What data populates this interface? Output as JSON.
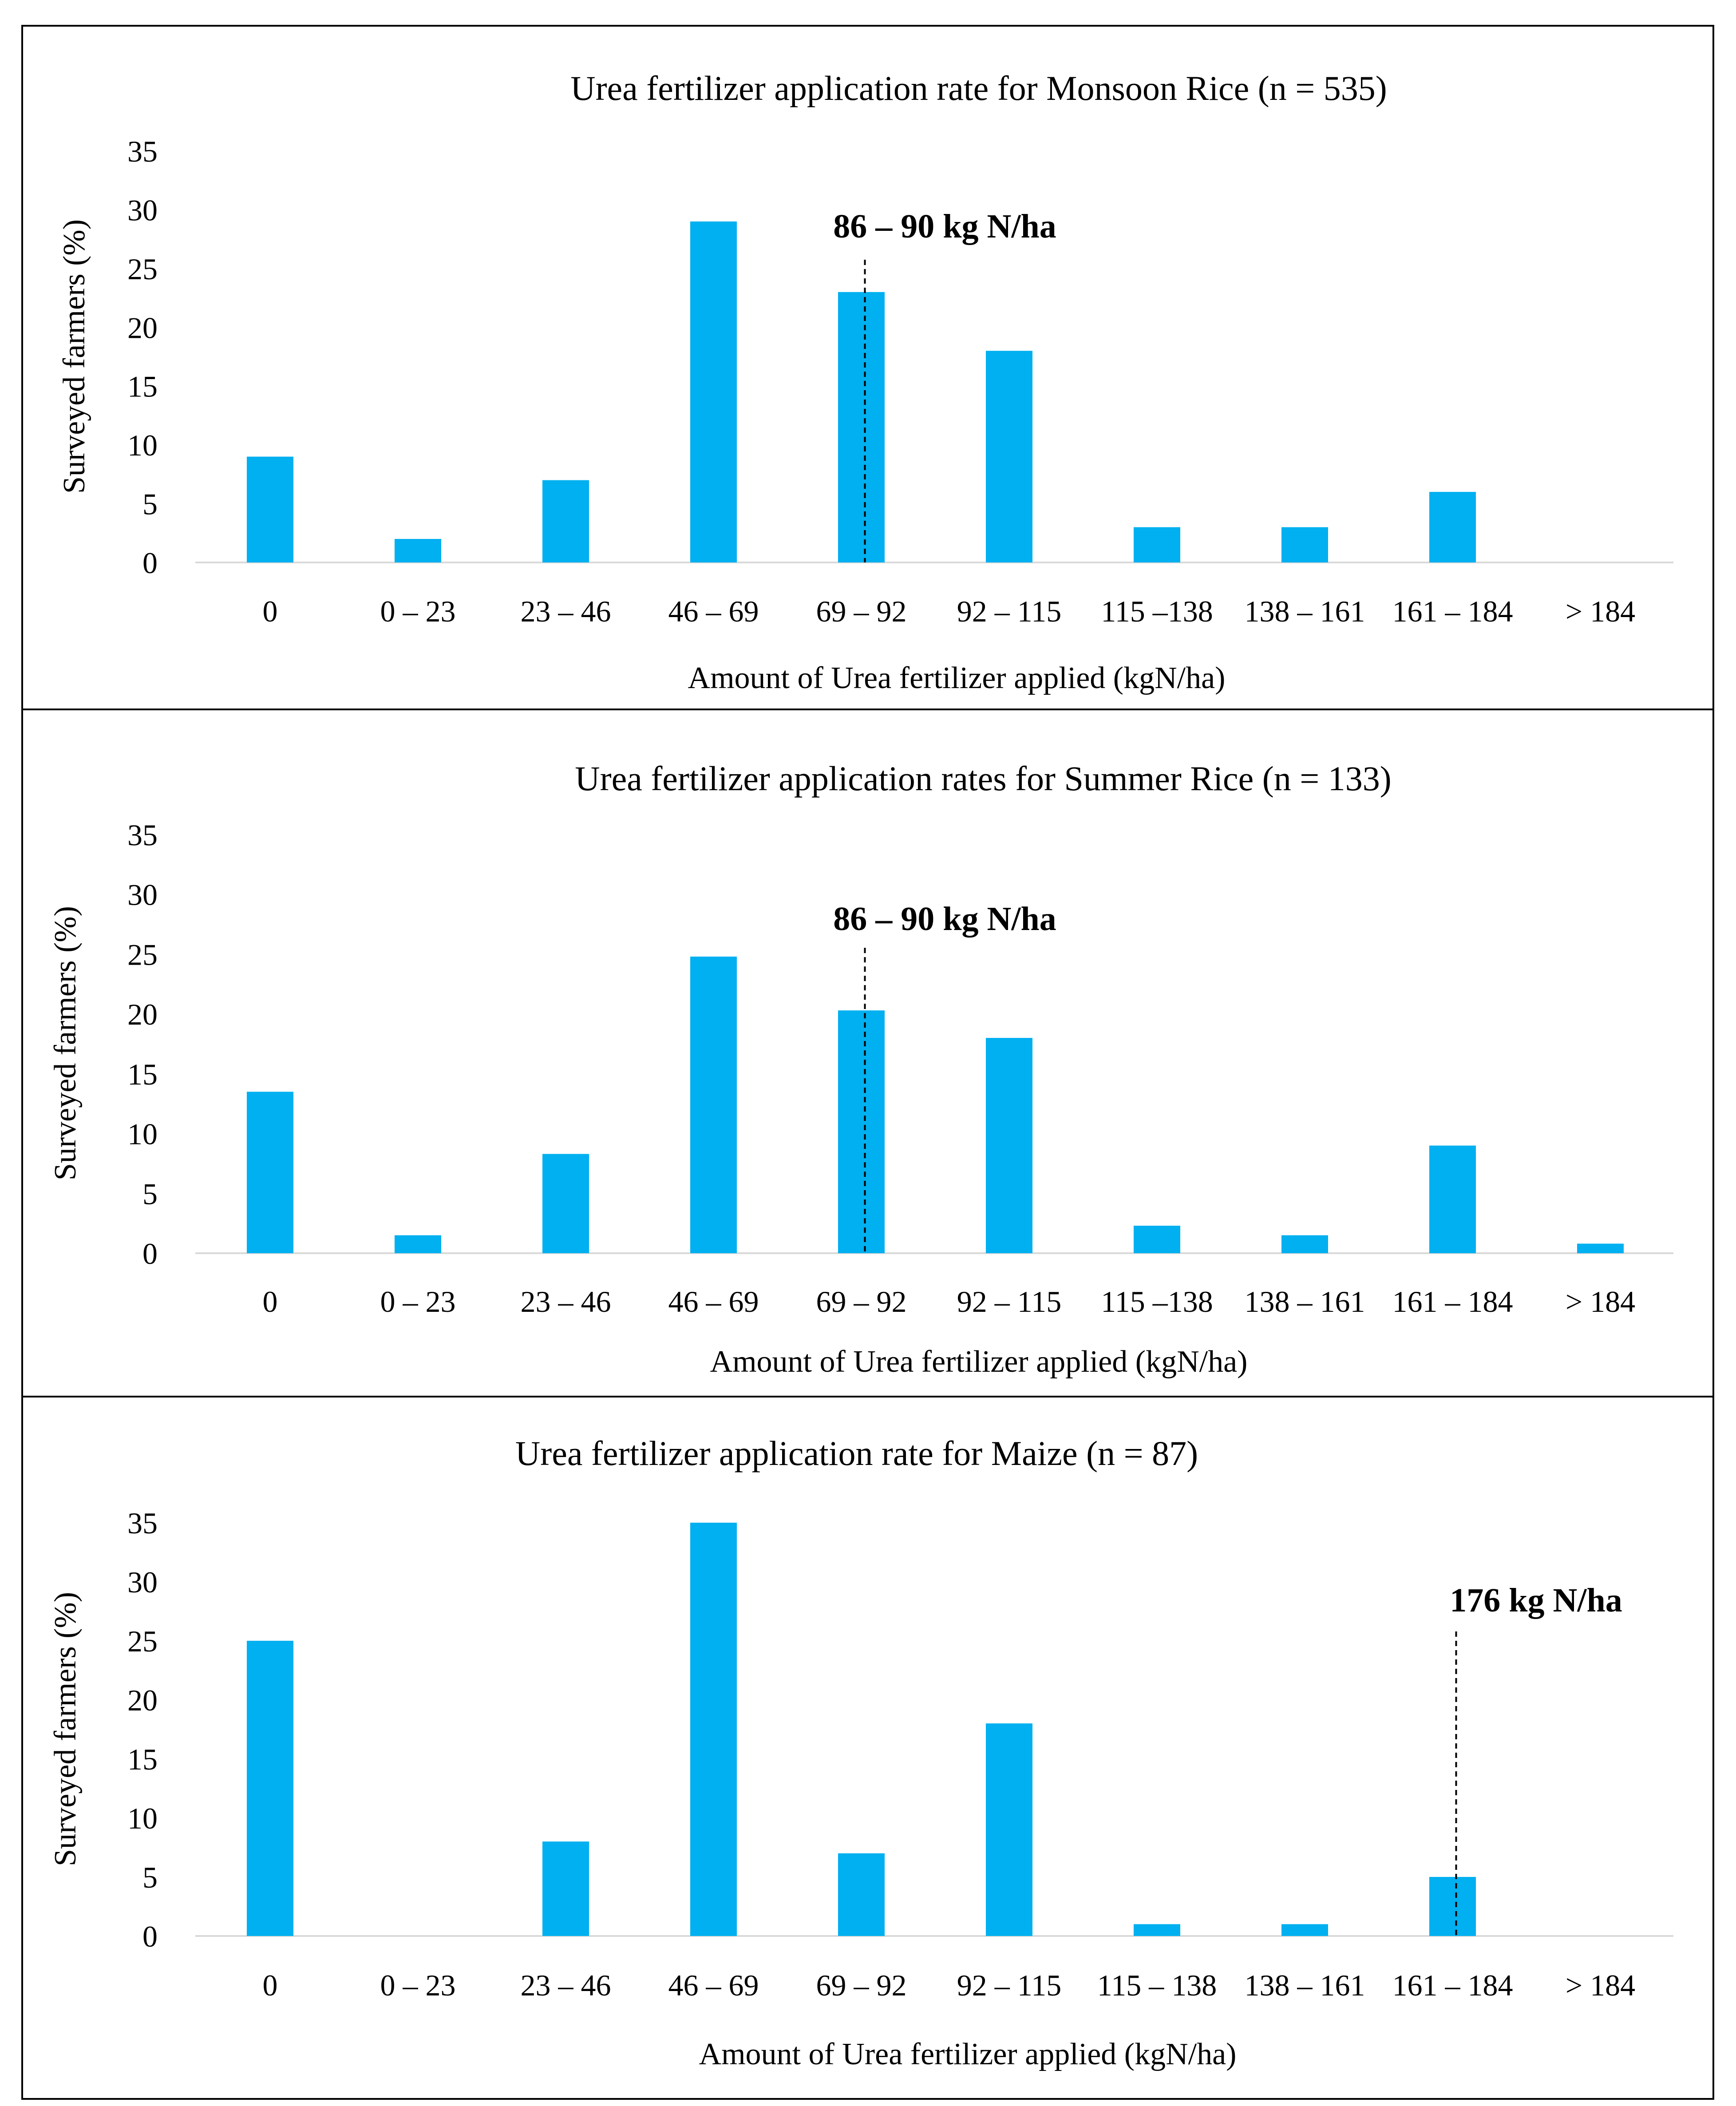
{
  "chart_data": [
    {
      "type": "bar",
      "title": "Urea fertilizer application rate for Monsoon Rice (n = 535)",
      "xlabel": "Amount of Urea fertilizer applied (kgN/ha)",
      "ylabel": "Surveyed farmers (%)",
      "categories": [
        "0",
        "0 – 23",
        "23 – 46",
        "46 – 69",
        "69 – 92",
        "92 – 115",
        "115 –138",
        "138 – 161",
        "161 – 184",
        "> 184"
      ],
      "values": [
        9,
        2,
        7,
        29,
        23,
        18,
        3,
        3,
        6,
        0
      ],
      "ylim": [
        0,
        35
      ],
      "yticks": [
        0,
        5,
        10,
        15,
        20,
        25,
        30,
        35
      ],
      "grid": false,
      "bar_color": "#00B0F0",
      "annotation": {
        "text": "86 – 90 kg N/ha",
        "category_index": 4
      }
    },
    {
      "type": "bar",
      "title": "Urea fertilizer application rates for Summer Rice (n = 133)",
      "xlabel": "Amount of Urea fertilizer applied (kgN/ha)",
      "ylabel": "Surveyed farmers (%)",
      "categories": [
        "0",
        "0 – 23",
        "23 – 46",
        "46 – 69",
        "69 – 92",
        "92 – 115",
        "115 –138",
        "138 – 161",
        "161 – 184",
        "> 184"
      ],
      "values": [
        13.5,
        1.5,
        8.3,
        24.8,
        20.3,
        18.0,
        2.3,
        1.5,
        9.0,
        0.8
      ],
      "ylim": [
        0,
        35
      ],
      "yticks": [
        0,
        5,
        10,
        15,
        20,
        25,
        30,
        35
      ],
      "grid": false,
      "bar_color": "#00B0F0",
      "annotation": {
        "text": "86 – 90 kg N/ha",
        "category_index": 4
      }
    },
    {
      "type": "bar",
      "title": "Urea fertilizer application rate for Maize (n = 87)",
      "xlabel": "Amount of Urea fertilizer applied (kgN/ha)",
      "ylabel": "Surveyed farmers (%)",
      "categories": [
        "0",
        "0 – 23",
        "23 – 46",
        "46 – 69",
        "69 – 92",
        "92 – 115",
        "115 – 138",
        "138 – 161",
        "161 – 184",
        "> 184"
      ],
      "values": [
        25,
        0,
        8,
        35,
        7,
        18,
        1,
        1,
        5,
        0
      ],
      "ylim": [
        0,
        35
      ],
      "yticks": [
        0,
        5,
        10,
        15,
        20,
        25,
        30,
        35
      ],
      "grid": false,
      "bar_color": "#00B0F0",
      "annotation": {
        "text": "176 kg N/ha",
        "category_index": 8
      }
    }
  ]
}
